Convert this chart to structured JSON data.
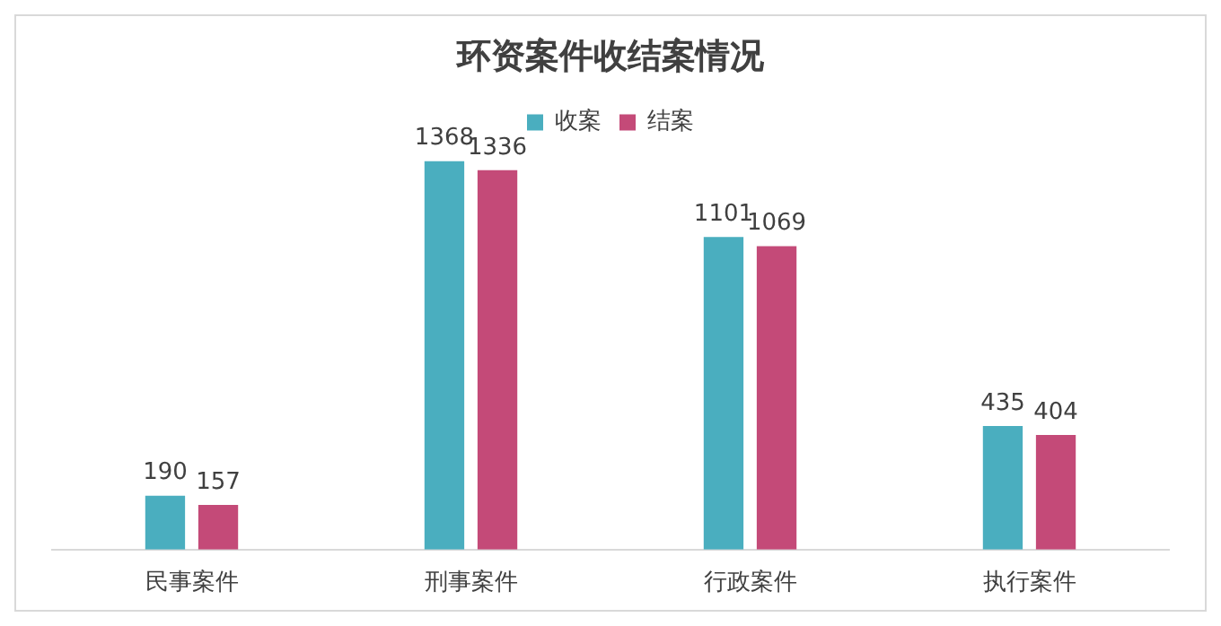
{
  "chart_data": {
    "type": "bar",
    "title": "环资案件收结案情况",
    "categories": [
      "民事案件",
      "刑事案件",
      "行政案件",
      "执行案件"
    ],
    "series": [
      {
        "name": "收案",
        "color": "#4aaebf",
        "values": [
          190,
          1368,
          1101,
          435
        ]
      },
      {
        "name": "结案",
        "color": "#c44a78",
        "values": [
          157,
          1336,
          1069,
          404
        ]
      }
    ],
    "data_labels": true,
    "legend": "top",
    "grid": false,
    "tick_labels": "x"
  }
}
